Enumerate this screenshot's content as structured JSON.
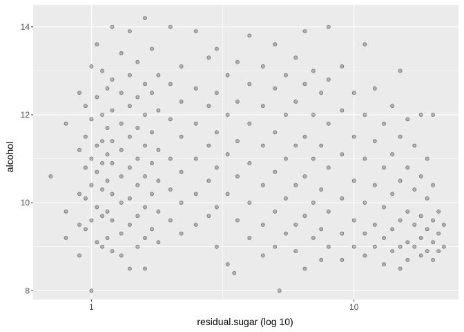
{
  "chart_data": {
    "type": "scatter",
    "title": "",
    "xlabel": "residual.sugar (log 10)",
    "ylabel": "alcohol",
    "x_scale": "log10",
    "xlim": [
      0.6,
      25
    ],
    "ylim": [
      7.8,
      14.5
    ],
    "x_ticks": [
      1,
      10
    ],
    "y_ticks": [
      8,
      10,
      12,
      14
    ],
    "grid": true,
    "panel_background": "#ebebeb",
    "grid_color": "#ffffff",
    "point_fill": "#000000",
    "point_alpha": 0.25,
    "point_stroke": "#000000",
    "notes": "Dense overplotted scatter of residual sugar vs alcohol. Points listed below are a representative reading of the visible cloud.",
    "points": [
      [
        0.7,
        10.6
      ],
      [
        0.8,
        9.8
      ],
      [
        0.8,
        11.8
      ],
      [
        0.8,
        9.2
      ],
      [
        0.9,
        12.5
      ],
      [
        0.9,
        11.2
      ],
      [
        0.9,
        10.2
      ],
      [
        0.9,
        9.5
      ],
      [
        0.9,
        8.8
      ],
      [
        0.95,
        12.2
      ],
      [
        0.95,
        11.5
      ],
      [
        0.95,
        10.8
      ],
      [
        0.95,
        10.1
      ],
      [
        0.95,
        9.4
      ],
      [
        1.0,
        8.0
      ],
      [
        1.0,
        13.1
      ],
      [
        1.0,
        11.9
      ],
      [
        1.0,
        11.0
      ],
      [
        1.0,
        10.4
      ],
      [
        1.0,
        9.6
      ],
      [
        1.05,
        13.6
      ],
      [
        1.05,
        12.4
      ],
      [
        1.05,
        11.3
      ],
      [
        1.05,
        10.7
      ],
      [
        1.05,
        9.9
      ],
      [
        1.05,
        9.1
      ],
      [
        1.1,
        13.0
      ],
      [
        1.1,
        12.0
      ],
      [
        1.1,
        11.4
      ],
      [
        1.1,
        10.9
      ],
      [
        1.1,
        10.3
      ],
      [
        1.1,
        9.7
      ],
      [
        1.1,
        9.0
      ],
      [
        1.15,
        12.6
      ],
      [
        1.15,
        11.7
      ],
      [
        1.15,
        11.1
      ],
      [
        1.15,
        10.5
      ],
      [
        1.15,
        9.8
      ],
      [
        1.15,
        9.2
      ],
      [
        1.2,
        14.0
      ],
      [
        1.2,
        12.8
      ],
      [
        1.2,
        12.1
      ],
      [
        1.2,
        11.4
      ],
      [
        1.2,
        10.9
      ],
      [
        1.2,
        10.2
      ],
      [
        1.2,
        9.6
      ],
      [
        1.2,
        8.9
      ],
      [
        1.3,
        13.4
      ],
      [
        1.3,
        12.5
      ],
      [
        1.3,
        11.8
      ],
      [
        1.3,
        11.2
      ],
      [
        1.3,
        10.6
      ],
      [
        1.3,
        10.0
      ],
      [
        1.3,
        9.3
      ],
      [
        1.3,
        8.8
      ],
      [
        1.4,
        13.9
      ],
      [
        1.4,
        12.9
      ],
      [
        1.4,
        12.2
      ],
      [
        1.4,
        11.5
      ],
      [
        1.4,
        10.8
      ],
      [
        1.4,
        10.1
      ],
      [
        1.4,
        9.5
      ],
      [
        1.4,
        8.5
      ],
      [
        1.5,
        13.2
      ],
      [
        1.5,
        12.4
      ],
      [
        1.5,
        11.7
      ],
      [
        1.5,
        11.0
      ],
      [
        1.5,
        10.4
      ],
      [
        1.5,
        9.7
      ],
      [
        1.5,
        9.0
      ],
      [
        1.6,
        14.2
      ],
      [
        1.6,
        12.7
      ],
      [
        1.6,
        12.0
      ],
      [
        1.6,
        11.3
      ],
      [
        1.6,
        10.6
      ],
      [
        1.6,
        9.9
      ],
      [
        1.6,
        9.2
      ],
      [
        1.6,
        8.5
      ],
      [
        1.7,
        13.5
      ],
      [
        1.7,
        12.5
      ],
      [
        1.7,
        11.6
      ],
      [
        1.7,
        10.9
      ],
      [
        1.7,
        10.2
      ],
      [
        1.7,
        9.4
      ],
      [
        1.8,
        12.9
      ],
      [
        1.8,
        12.1
      ],
      [
        1.8,
        11.2
      ],
      [
        1.8,
        10.5
      ],
      [
        1.8,
        9.8
      ],
      [
        1.8,
        9.1
      ],
      [
        2.0,
        14.0
      ],
      [
        2.0,
        12.7
      ],
      [
        2.0,
        11.9
      ],
      [
        2.0,
        11.0
      ],
      [
        2.0,
        10.3
      ],
      [
        2.0,
        9.6
      ],
      [
        2.2,
        13.1
      ],
      [
        2.2,
        12.3
      ],
      [
        2.2,
        11.5
      ],
      [
        2.2,
        10.7
      ],
      [
        2.2,
        10.0
      ],
      [
        2.2,
        9.3
      ],
      [
        2.5,
        13.9
      ],
      [
        2.5,
        12.6
      ],
      [
        2.5,
        11.8
      ],
      [
        2.5,
        11.0
      ],
      [
        2.5,
        10.2
      ],
      [
        2.5,
        9.5
      ],
      [
        2.8,
        13.3
      ],
      [
        2.8,
        12.2
      ],
      [
        2.8,
        11.3
      ],
      [
        2.8,
        10.5
      ],
      [
        2.8,
        9.7
      ],
      [
        3.0,
        13.5
      ],
      [
        3.0,
        12.5
      ],
      [
        3.0,
        11.6
      ],
      [
        3.0,
        10.8
      ],
      [
        3.0,
        9.9
      ],
      [
        3.0,
        9.0
      ],
      [
        3.3,
        12.9
      ],
      [
        3.3,
        12.0
      ],
      [
        3.3,
        11.1
      ],
      [
        3.3,
        10.2
      ],
      [
        3.3,
        8.6
      ],
      [
        3.5,
        8.4
      ],
      [
        3.6,
        13.2
      ],
      [
        3.6,
        12.3
      ],
      [
        3.6,
        11.4
      ],
      [
        3.6,
        10.6
      ],
      [
        3.6,
        9.6
      ],
      [
        4.0,
        13.8
      ],
      [
        4.0,
        12.7
      ],
      [
        4.0,
        11.8
      ],
      [
        4.0,
        10.9
      ],
      [
        4.0,
        10.0
      ],
      [
        4.0,
        9.2
      ],
      [
        4.5,
        13.1
      ],
      [
        4.5,
        12.2
      ],
      [
        4.5,
        11.3
      ],
      [
        4.5,
        10.4
      ],
      [
        4.5,
        9.5
      ],
      [
        4.5,
        8.8
      ],
      [
        5.0,
        13.6
      ],
      [
        5.0,
        12.6
      ],
      [
        5.0,
        11.6
      ],
      [
        5.0,
        10.7
      ],
      [
        5.0,
        9.8
      ],
      [
        5.0,
        9.0
      ],
      [
        5.2,
        8.0
      ],
      [
        5.5,
        12.9
      ],
      [
        5.5,
        12.0
      ],
      [
        5.5,
        11.0
      ],
      [
        5.5,
        10.1
      ],
      [
        5.5,
        9.3
      ],
      [
        6.0,
        13.3
      ],
      [
        6.0,
        12.3
      ],
      [
        6.0,
        11.3
      ],
      [
        6.0,
        10.4
      ],
      [
        6.0,
        9.5
      ],
      [
        6.0,
        8.9
      ],
      [
        6.5,
        13.9
      ],
      [
        6.5,
        12.7
      ],
      [
        6.5,
        11.5
      ],
      [
        6.5,
        10.6
      ],
      [
        6.5,
        9.7
      ],
      [
        6.5,
        8.5
      ],
      [
        7.0,
        13.0
      ],
      [
        7.0,
        12.0
      ],
      [
        7.0,
        11.0
      ],
      [
        7.0,
        10.0
      ],
      [
        7.0,
        9.2
      ],
      [
        7.5,
        12.5
      ],
      [
        7.5,
        11.3
      ],
      [
        7.5,
        10.3
      ],
      [
        7.5,
        9.4
      ],
      [
        7.5,
        8.7
      ],
      [
        8.0,
        14.0
      ],
      [
        8.0,
        12.8
      ],
      [
        8.0,
        11.8
      ],
      [
        8.0,
        10.8
      ],
      [
        8.0,
        9.8
      ],
      [
        8.0,
        9.0
      ],
      [
        9.0,
        13.1
      ],
      [
        9.0,
        12.1
      ],
      [
        9.0,
        11.1
      ],
      [
        9.0,
        10.1
      ],
      [
        9.0,
        9.3
      ],
      [
        9.0,
        8.7
      ],
      [
        10.0,
        12.5
      ],
      [
        10.0,
        11.5
      ],
      [
        10.0,
        10.5
      ],
      [
        10.0,
        9.6
      ],
      [
        10.0,
        9.0
      ],
      [
        11.0,
        13.6
      ],
      [
        11.0,
        12.0
      ],
      [
        11.0,
        11.0
      ],
      [
        11.0,
        10.0
      ],
      [
        11.0,
        9.3
      ],
      [
        11.0,
        8.8
      ],
      [
        12.0,
        12.6
      ],
      [
        12.0,
        11.4
      ],
      [
        12.0,
        10.4
      ],
      [
        12.0,
        9.5
      ],
      [
        12.0,
        9.0
      ],
      [
        13.0,
        11.8
      ],
      [
        13.0,
        10.8
      ],
      [
        13.0,
        9.9
      ],
      [
        13.0,
        9.2
      ],
      [
        13.0,
        8.6
      ],
      [
        14.0,
        12.2
      ],
      [
        14.0,
        11.1
      ],
      [
        14.0,
        10.2
      ],
      [
        14.0,
        9.4
      ],
      [
        14.0,
        8.9
      ],
      [
        15.0,
        13.0
      ],
      [
        15.0,
        11.5
      ],
      [
        15.0,
        10.5
      ],
      [
        15.0,
        9.6
      ],
      [
        15.0,
        9.0
      ],
      [
        15.0,
        8.5
      ],
      [
        16.0,
        11.9
      ],
      [
        16.0,
        10.8
      ],
      [
        16.0,
        9.8
      ],
      [
        16.0,
        9.1
      ],
      [
        16.0,
        8.7
      ],
      [
        17.0,
        11.3
      ],
      [
        17.0,
        10.3
      ],
      [
        17.0,
        9.5
      ],
      [
        17.0,
        9.0
      ],
      [
        18.0,
        12.0
      ],
      [
        18.0,
        10.6
      ],
      [
        18.0,
        9.7
      ],
      [
        18.0,
        9.2
      ],
      [
        18.0,
        8.8
      ],
      [
        19.0,
        11.0
      ],
      [
        19.0,
        10.1
      ],
      [
        19.0,
        9.4
      ],
      [
        19.0,
        8.9
      ],
      [
        20.0,
        12.0
      ],
      [
        20.0,
        10.4
      ],
      [
        20.0,
        9.6
      ],
      [
        20.0,
        9.1
      ],
      [
        20.0,
        8.7
      ],
      [
        21.0,
        9.8
      ],
      [
        21.0,
        9.3
      ],
      [
        21.0,
        8.9
      ],
      [
        22.0,
        9.5
      ],
      [
        22.0,
        9.0
      ]
    ]
  }
}
